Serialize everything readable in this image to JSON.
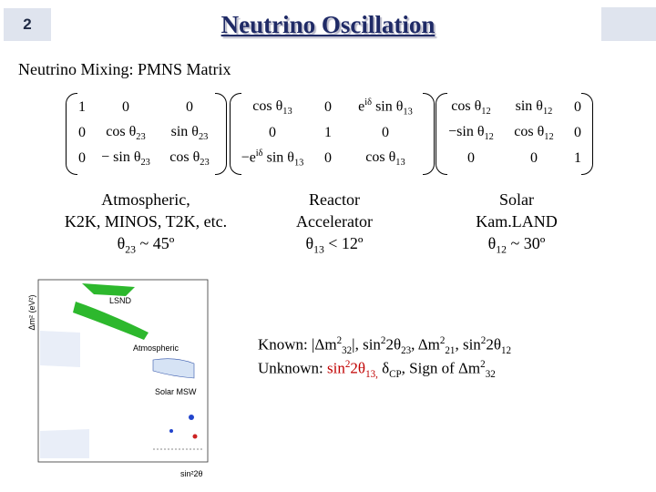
{
  "slide_number": "2",
  "title": "Neutrino Oscillation",
  "subtitle": "Neutrino Mixing: PMNS Matrix",
  "matrices": [
    {
      "rows": [
        [
          [
            {
              "text": "1"
            }
          ],
          [
            {
              "text": "0"
            }
          ],
          [
            {
              "text": "0"
            }
          ]
        ],
        [
          [
            {
              "text": "0"
            }
          ],
          [
            {
              "text": "cos θ"
            },
            {
              "text": "23",
              "script": "sub"
            }
          ],
          [
            {
              "text": "sin θ"
            },
            {
              "text": "23",
              "script": "sub"
            }
          ]
        ],
        [
          [
            {
              "text": "0"
            }
          ],
          [
            {
              "text": "− sin θ"
            },
            {
              "text": "23",
              "script": "sub"
            }
          ],
          [
            {
              "text": "cos θ"
            },
            {
              "text": "23",
              "script": "sub"
            }
          ]
        ]
      ]
    },
    {
      "rows": [
        [
          [
            {
              "text": "cos θ"
            },
            {
              "text": "13",
              "script": "sub"
            }
          ],
          [
            {
              "text": "0"
            }
          ],
          [
            {
              "text": "e"
            },
            {
              "text": "iδ",
              "script": "sup"
            },
            {
              "text": " sin θ"
            },
            {
              "text": "13",
              "script": "sub"
            }
          ]
        ],
        [
          [
            {
              "text": "0"
            }
          ],
          [
            {
              "text": "1"
            }
          ],
          [
            {
              "text": "0"
            }
          ]
        ],
        [
          [
            {
              "text": "−e"
            },
            {
              "text": "iδ",
              "script": "sup"
            },
            {
              "text": " sin θ"
            },
            {
              "text": "13",
              "script": "sub"
            }
          ],
          [
            {
              "text": "0"
            }
          ],
          [
            {
              "text": "cos θ"
            },
            {
              "text": "13",
              "script": "sub"
            }
          ]
        ]
      ]
    },
    {
      "rows": [
        [
          [
            {
              "text": "cos θ"
            },
            {
              "text": "12",
              "script": "sub"
            }
          ],
          [
            {
              "text": "sin θ"
            },
            {
              "text": "12",
              "script": "sub"
            }
          ],
          [
            {
              "text": "0"
            }
          ]
        ],
        [
          [
            {
              "text": "−sin θ"
            },
            {
              "text": "12",
              "script": "sub"
            }
          ],
          [
            {
              "text": "cos θ"
            },
            {
              "text": "12",
              "script": "sub"
            }
          ],
          [
            {
              "text": "0"
            }
          ]
        ],
        [
          [
            {
              "text": "0"
            }
          ],
          [
            {
              "text": "0"
            }
          ],
          [
            {
              "text": "1"
            }
          ]
        ]
      ]
    }
  ],
  "notes": [
    {
      "lines": [
        [
          {
            "text": "Atmospheric,"
          }
        ],
        [
          {
            "text": "K2K, MINOS, T2K, etc."
          }
        ],
        [
          {
            "text": "θ"
          },
          {
            "text": "23",
            "script": "sub"
          },
          {
            "text": " ~ 45º"
          }
        ]
      ]
    },
    {
      "lines": [
        [
          {
            "text": "Reactor"
          }
        ],
        [
          {
            "text": "Accelerator"
          }
        ],
        [
          {
            "text": "θ"
          },
          {
            "text": "13",
            "script": "sub"
          },
          {
            "text": " < 12º"
          }
        ]
      ]
    },
    {
      "lines": [
        [
          {
            "text": "Solar"
          }
        ],
        [
          {
            "text": "Kam.LAND"
          }
        ],
        [
          {
            "text": "θ"
          },
          {
            "text": "12",
            "script": "sub"
          },
          {
            "text": " ~ 30º"
          }
        ]
      ]
    }
  ],
  "known": [
    {
      "text": "Known: |Δm"
    },
    {
      "text": "2",
      "script": "sup"
    },
    {
      "text": "32",
      "script": "sub"
    },
    {
      "text": "|, sin"
    },
    {
      "text": "2",
      "script": "sup"
    },
    {
      "text": "2θ"
    },
    {
      "text": "23",
      "script": "sub"
    },
    {
      "text": ", Δm"
    },
    {
      "text": "2",
      "script": "sup"
    },
    {
      "text": "21",
      "script": "sub"
    },
    {
      "text": ", sin"
    },
    {
      "text": "2",
      "script": "sup"
    },
    {
      "text": "2θ"
    },
    {
      "text": "12",
      "script": "sub"
    }
  ],
  "unknown": [
    {
      "text": "Unknown: "
    },
    {
      "text": "sin",
      "color": "#c00000"
    },
    {
      "text": "2",
      "script": "sup",
      "color": "#c00000"
    },
    {
      "text": "2θ",
      "color": "#c00000"
    },
    {
      "text": "13,",
      "script": "sub",
      "color": "#c00000"
    },
    {
      "text": " δ"
    },
    {
      "text": "CP",
      "script": "sub"
    },
    {
      "text": ", Sign of Δm"
    },
    {
      "text": "2",
      "script": "sup"
    },
    {
      "text": "32",
      "script": "sub"
    }
  ],
  "plot": {
    "y_label": "Δm² (eV²)",
    "x_label": "sin²2θ",
    "labels": [
      "LSND",
      "Atmospheric",
      "Solar MSW"
    ]
  }
}
